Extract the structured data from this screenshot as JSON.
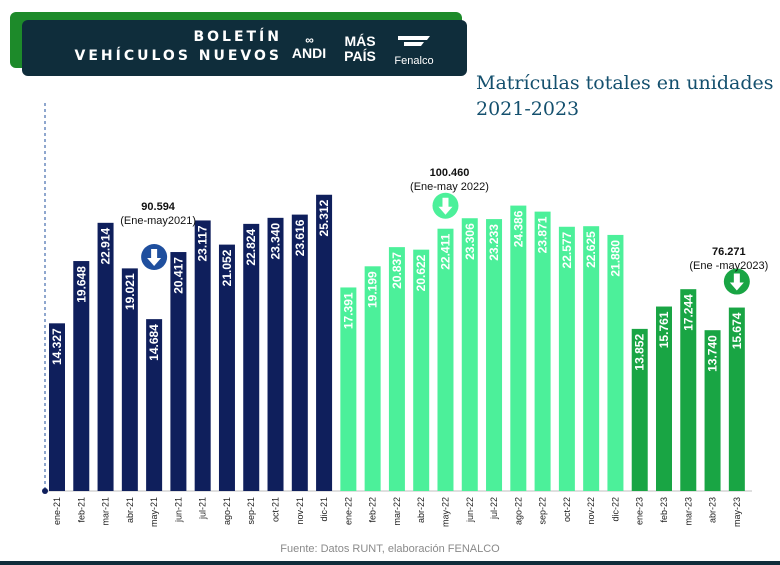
{
  "header": {
    "title_line1": "BOLETÍN",
    "title_line2": "VEHÍCULOS NUEVOS",
    "logos": {
      "andi_mark": "∞",
      "andi": "ANDI",
      "maspais_line1": "MÁS",
      "maspais_line2": "PAÍS",
      "fenalco": "Fenalco"
    }
  },
  "chart_data": {
    "type": "bar",
    "title_line1": "Matrículas totales en unidades",
    "title_line2": "2021-2023",
    "categories": [
      "ene-21",
      "feb-21",
      "mar-21",
      "abr-21",
      "may-21",
      "jun-21",
      "jul-21",
      "ago-21",
      "sep-21",
      "oct-21",
      "nov-21",
      "dic-21",
      "ene-22",
      "feb-22",
      "mar-22",
      "abr-22",
      "may-22",
      "jun-22",
      "jul-22",
      "ago-22",
      "sep-22",
      "oct-22",
      "nov-22",
      "dic-22",
      "ene-23",
      "feb-23",
      "mar-23",
      "abr-23",
      "may-23"
    ],
    "values": [
      14327,
      19648,
      22914,
      19021,
      14684,
      20417,
      23117,
      21052,
      22824,
      23340,
      23616,
      25312,
      17391,
      19199,
      20837,
      20622,
      22411,
      23306,
      23233,
      24386,
      23871,
      22577,
      22625,
      21880,
      13852,
      15761,
      17244,
      13740,
      15674
    ],
    "labels": [
      "14.327",
      "19.648",
      "22.914",
      "19.021",
      "14.684",
      "20.417",
      "23.117",
      "21.052",
      "22.824",
      "23.340",
      "23.616",
      "25.312",
      "17.391",
      "19.199",
      "20.837",
      "20.622",
      "22.411",
      "23.306",
      "23.233",
      "24.386",
      "23.871",
      "22.577",
      "22.625",
      "21.880",
      "13.852",
      "15.761",
      "17.244",
      "13.740",
      "15.674"
    ],
    "ylim": [
      0,
      27000
    ],
    "colors": {
      "2021": "#0f1f5c",
      "2022": "#4cf09a",
      "2023": "#19a544",
      "arrow_2021": "#1f4f9e",
      "arrow_2022": "#4cf09a",
      "arrow_2023": "#19a544"
    },
    "annotations": [
      {
        "value": "90.594",
        "period": "(Ene-may2021)",
        "year": "2021",
        "category": "may-21"
      },
      {
        "value": "100.460",
        "period": "(Ene-may 2022)",
        "year": "2022",
        "category": "may-22"
      },
      {
        "value": "76.271",
        "period": "(Ene -may2023)",
        "year": "2023",
        "category": "may-23"
      }
    ],
    "source": "Fuente: Datos RUNT, elaboración FENALCO"
  }
}
